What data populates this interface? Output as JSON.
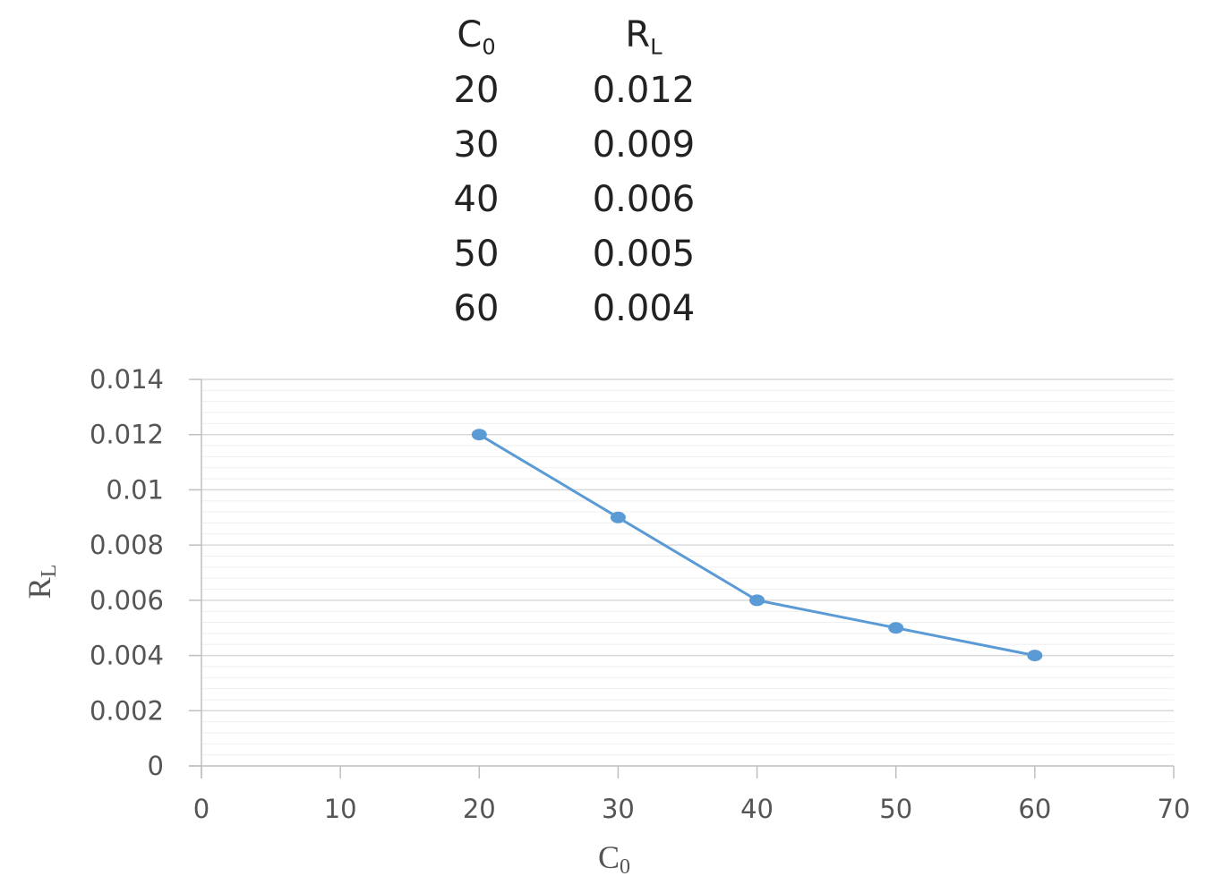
{
  "table": {
    "headers": [
      {
        "main": "C",
        "sub": "0"
      },
      {
        "main": "R",
        "sub": "L"
      }
    ],
    "rows": [
      [
        "20",
        "0.012"
      ],
      [
        "30",
        "0.009"
      ],
      [
        "40",
        "0.006"
      ],
      [
        "50",
        "0.005"
      ],
      [
        "60",
        "0.004"
      ]
    ]
  },
  "chart_data": {
    "type": "scatter",
    "title": "",
    "xlabel": {
      "main": "C",
      "sub": "0"
    },
    "ylabel": {
      "main": "R",
      "sub": "L"
    },
    "xlim": [
      0,
      70
    ],
    "ylim": [
      0,
      0.014
    ],
    "x_ticks": [
      0,
      10,
      20,
      30,
      40,
      50,
      60,
      70
    ],
    "x_tick_labels": [
      "0",
      "10",
      "20",
      "30",
      "40",
      "50",
      "60",
      "70"
    ],
    "y_ticks": [
      0,
      0.002,
      0.004,
      0.006,
      0.008,
      0.01,
      0.012,
      0.014
    ],
    "y_tick_labels": [
      "0",
      "0.002",
      "0.004",
      "0.006",
      "0.008",
      "0.01",
      "0.012",
      "0.014"
    ],
    "grid": true,
    "minor_grid": true,
    "legend": "none",
    "series": [
      {
        "x": [
          20,
          30,
          40,
          50,
          60
        ],
        "y": [
          0.012,
          0.009,
          0.006,
          0.005,
          0.004
        ],
        "color": "#5b9bd5",
        "marker": "circle",
        "line": "straight"
      }
    ],
    "colors": {
      "line": "#5b9bd5",
      "major_grid": "#d9d9d9",
      "minor_grid": "#efefef",
      "axis": "#bfbfbf"
    }
  }
}
